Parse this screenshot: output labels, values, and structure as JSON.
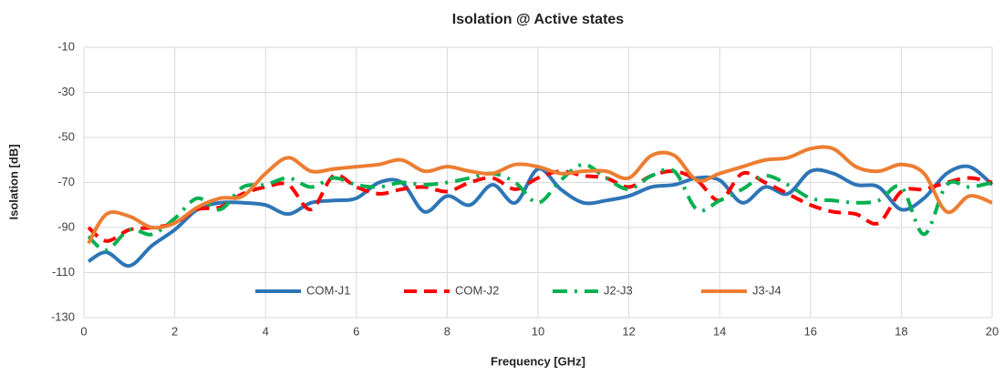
{
  "chart_data": {
    "type": "line",
    "title": "Isolation @ Active states",
    "x_label": "Frequency [GHz]",
    "y_label": "Isolation [dB]",
    "x": [
      0.1,
      0.5,
      1,
      1.5,
      2,
      2.5,
      3,
      3.5,
      4,
      4.5,
      5,
      5.5,
      6,
      6.5,
      7,
      7.5,
      8,
      8.5,
      9,
      9.5,
      10,
      10.5,
      11,
      11.5,
      12,
      12.5,
      13,
      13.5,
      14,
      14.5,
      15,
      15.5,
      16,
      16.5,
      17,
      17.5,
      18,
      18.5,
      19,
      19.5,
      20
    ],
    "series": [
      {
        "name": "COM-J1",
        "color": "#2e75b6",
        "dash": "solid",
        "values": [
          -105,
          -101,
          -107,
          -98,
          -91,
          -82,
          -79,
          -79,
          -80,
          -84,
          -79,
          -78,
          -77,
          -70,
          -70,
          -83,
          -76,
          -80,
          -71,
          -79,
          -64,
          -73,
          -79,
          -78,
          -76,
          -72,
          -71,
          -68,
          -69,
          -79,
          -72,
          -75,
          -65,
          -66,
          -71,
          -72,
          -82,
          -77,
          -66,
          -63,
          -71
        ]
      },
      {
        "name": "COM-J2",
        "color": "#ff0000",
        "dash": "dash",
        "values": [
          -90,
          -96,
          -91,
          -90,
          -88,
          -82,
          -81,
          -75,
          -72,
          -71,
          -82,
          -67,
          -72,
          -75,
          -73,
          -72,
          -74,
          -70,
          -68,
          -73,
          -68,
          -65,
          -67,
          -68,
          -72,
          -67,
          -65,
          -69,
          -78,
          -66,
          -70,
          -75,
          -80,
          -83,
          -84,
          -88,
          -74,
          -73,
          -70,
          -68,
          -70
        ]
      },
      {
        "name": "J2-J3",
        "color": "#00b050",
        "dash": "dashdot",
        "values": [
          -94,
          -100,
          -91,
          -93,
          -86,
          -77,
          -82,
          -72,
          -71,
          -68,
          -72,
          -68,
          -71,
          -72,
          -70,
          -71,
          -70,
          -68,
          -66,
          -70,
          -79,
          -69,
          -62,
          -68,
          -73,
          -67,
          -65,
          -82,
          -78,
          -73,
          -67,
          -71,
          -77,
          -78,
          -79,
          -78,
          -72,
          -93,
          -71,
          -72,
          -70
        ]
      },
      {
        "name": "J3-J4",
        "color": "#ed7d31",
        "dash": "solid",
        "values": [
          -97,
          -84,
          -85,
          -90,
          -88,
          -81,
          -77,
          -76,
          -66,
          -59,
          -65,
          -64,
          -63,
          -62,
          -60,
          -65,
          -63,
          -65,
          -66,
          -62,
          -63,
          -66,
          -65,
          -65,
          -68,
          -58,
          -58,
          -69,
          -66,
          -63,
          -60,
          -59,
          -55,
          -55,
          -63,
          -65,
          -62,
          -66,
          -83,
          -76,
          -79
        ]
      }
    ],
    "xlim": [
      0,
      20
    ],
    "xticks": [
      0,
      2,
      4,
      6,
      8,
      10,
      12,
      14,
      16,
      18,
      20
    ],
    "ylim": [
      -130,
      -10
    ],
    "yticks": [
      -10,
      -30,
      -50,
      -70,
      -90,
      -110,
      -130
    ],
    "grid": true,
    "legend": "bottom"
  }
}
